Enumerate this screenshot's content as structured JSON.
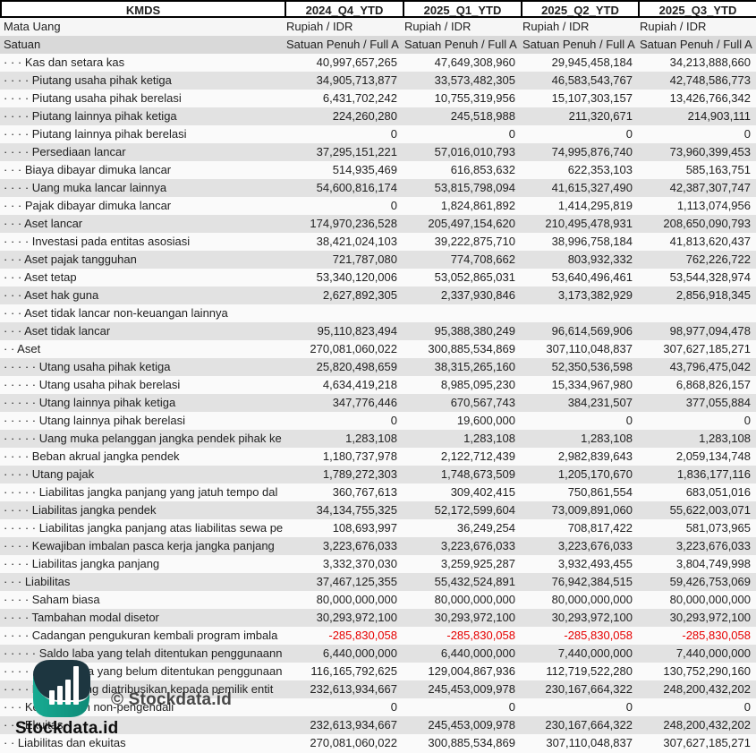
{
  "header": {
    "ticker": "KMDS",
    "periods": [
      "2024_Q4_YTD",
      "2025_Q1_YTD",
      "2025_Q2_YTD",
      "2025_Q3_YTD"
    ]
  },
  "meta": {
    "currency": {
      "label": "Mata Uang",
      "values": [
        "Rupiah / IDR",
        "Rupiah / IDR",
        "Rupiah / IDR",
        "Rupiah / IDR"
      ]
    },
    "unit": {
      "label": "Satuan",
      "values": [
        "Satuan Penuh / Full A",
        "Satuan Penuh / Full A",
        "Satuan Penuh / Full A",
        "Satuan Penuh / Full A"
      ]
    }
  },
  "table": {
    "rows": [
      {
        "label": "· · · Kas dan setara kas",
        "values": [
          "40,997,657,265",
          "47,649,308,960",
          "29,945,458,184",
          "34,213,888,660"
        ]
      },
      {
        "label": "· · · · Piutang usaha pihak ketiga",
        "values": [
          "34,905,713,877",
          "33,573,482,305",
          "46,583,543,767",
          "42,748,586,773"
        ]
      },
      {
        "label": "· · · · Piutang usaha pihak berelasi",
        "values": [
          "6,431,702,242",
          "10,755,319,956",
          "15,107,303,157",
          "13,426,766,342"
        ]
      },
      {
        "label": "· · · · Piutang lainnya pihak ketiga",
        "values": [
          "224,260,280",
          "245,518,988",
          "211,320,671",
          "214,903,111"
        ]
      },
      {
        "label": "· · · · Piutang lainnya pihak berelasi",
        "values": [
          "0",
          "0",
          "0",
          "0"
        ]
      },
      {
        "label": "· · · · Persediaan lancar",
        "values": [
          "37,295,151,221",
          "57,016,010,793",
          "74,995,876,740",
          "73,960,399,453"
        ]
      },
      {
        "label": "· · · Biaya dibayar dimuka lancar",
        "values": [
          "514,935,469",
          "616,853,632",
          "622,353,103",
          "585,163,751"
        ]
      },
      {
        "label": "· · · · Uang muka lancar lainnya",
        "values": [
          "54,600,816,174",
          "53,815,798,094",
          "41,615,327,490",
          "42,387,307,747"
        ]
      },
      {
        "label": "· · · Pajak dibayar dimuka lancar",
        "values": [
          "0",
          "1,824,861,892",
          "1,414,295,819",
          "1,113,074,956"
        ]
      },
      {
        "label": "· · · Aset lancar",
        "values": [
          "174,970,236,528",
          "205,497,154,620",
          "210,495,478,931",
          "208,650,090,793"
        ]
      },
      {
        "label": "· · · · Investasi pada entitas asosiasi",
        "values": [
          "38,421,024,103",
          "39,222,875,710",
          "38,996,758,184",
          "41,813,620,437"
        ]
      },
      {
        "label": "· · · Aset pajak tangguhan",
        "values": [
          "721,787,080",
          "774,708,662",
          "803,932,332",
          "762,226,722"
        ]
      },
      {
        "label": "· · · Aset tetap",
        "values": [
          "53,340,120,006",
          "53,052,865,031",
          "53,640,496,461",
          "53,544,328,974"
        ]
      },
      {
        "label": "· · · Aset hak guna",
        "values": [
          "2,627,892,305",
          "2,337,930,846",
          "3,173,382,929",
          "2,856,918,345"
        ]
      },
      {
        "label": "· · · Aset tidak lancar non-keuangan lainnya",
        "values": [
          "",
          "",
          "",
          ""
        ]
      },
      {
        "label": "· · · Aset tidak lancar",
        "values": [
          "95,110,823,494",
          "95,388,380,249",
          "96,614,569,906",
          "98,977,094,478"
        ]
      },
      {
        "label": "· · Aset",
        "values": [
          "270,081,060,022",
          "300,885,534,869",
          "307,110,048,837",
          "307,627,185,271"
        ]
      },
      {
        "label": "· · · · · Utang usaha pihak ketiga",
        "values": [
          "25,820,498,659",
          "38,315,265,160",
          "52,350,536,598",
          "43,796,475,042"
        ]
      },
      {
        "label": "· · · · · Utang usaha pihak berelasi",
        "values": [
          "4,634,419,218",
          "8,985,095,230",
          "15,334,967,980",
          "6,868,826,157"
        ]
      },
      {
        "label": "· · · · · Utang lainnya pihak ketiga",
        "values": [
          "347,776,446",
          "670,567,743",
          "384,231,507",
          "377,055,884"
        ]
      },
      {
        "label": "· · · · · Utang lainnya pihak berelasi",
        "values": [
          "0",
          "19,600,000",
          "0",
          "0"
        ]
      },
      {
        "label": "· · · · · Uang muka pelanggan jangka pendek pihak ke",
        "values": [
          "1,283,108",
          "1,283,108",
          "1,283,108",
          "1,283,108"
        ]
      },
      {
        "label": "· · · · Beban akrual jangka pendek",
        "values": [
          "1,180,737,978",
          "2,122,712,439",
          "2,982,839,643",
          "2,059,134,748"
        ]
      },
      {
        "label": "· · · · Utang pajak",
        "values": [
          "1,789,272,303",
          "1,748,673,509",
          "1,205,170,670",
          "1,836,177,116"
        ]
      },
      {
        "label": "· · · · · Liabilitas jangka panjang yang jatuh tempo dal",
        "values": [
          "360,767,613",
          "309,402,415",
          "750,861,554",
          "683,051,016"
        ]
      },
      {
        "label": "· · · · Liabilitas jangka pendek",
        "values": [
          "34,134,755,325",
          "52,172,599,604",
          "73,009,891,060",
          "55,622,003,071"
        ]
      },
      {
        "label": "· · · · · Liabilitas jangka panjang atas liabilitas sewa pe",
        "values": [
          "108,693,997",
          "36,249,254",
          "708,817,422",
          "581,073,965"
        ]
      },
      {
        "label": "· · · · Kewajiban imbalan pasca kerja jangka panjang",
        "values": [
          "3,223,676,033",
          "3,223,676,033",
          "3,223,676,033",
          "3,223,676,033"
        ]
      },
      {
        "label": "· · · · Liabilitas jangka panjang",
        "values": [
          "3,332,370,030",
          "3,259,925,287",
          "3,932,493,455",
          "3,804,749,998"
        ]
      },
      {
        "label": "· · · Liabilitas",
        "values": [
          "37,467,125,355",
          "55,432,524,891",
          "76,942,384,515",
          "59,426,753,069"
        ]
      },
      {
        "label": "· · · · Saham biasa",
        "values": [
          "80,000,000,000",
          "80,000,000,000",
          "80,000,000,000",
          "80,000,000,000"
        ]
      },
      {
        "label": "· · · · Tambahan modal disetor",
        "values": [
          "30,293,972,100",
          "30,293,972,100",
          "30,293,972,100",
          "30,293,972,100"
        ]
      },
      {
        "label": "· · · · Cadangan pengukuran kembali program imbala",
        "values": [
          "-285,830,058",
          "-285,830,058",
          "-285,830,058",
          "-285,830,058"
        ]
      },
      {
        "label": "· · · · · Saldo laba yang telah ditentukan penggunaann",
        "values": [
          "6,440,000,000",
          "6,440,000,000",
          "7,440,000,000",
          "7,440,000,000"
        ]
      },
      {
        "label": "· · · · · Saldo laba yang belum ditentukan penggunaan",
        "values": [
          "116,165,792,625",
          "129,004,867,936",
          "112,719,522,280",
          "130,752,290,160"
        ]
      },
      {
        "label": "· · · · Ekuitas yang diatribusikan kepada pemilik entit",
        "values": [
          "232,613,934,667",
          "245,453,009,978",
          "230,167,664,322",
          "248,200,432,202"
        ]
      },
      {
        "label": "· · · Kepentingan non-pengendali",
        "values": [
          "0",
          "0",
          "0",
          "0"
        ]
      },
      {
        "label": "· · · Ekuitas",
        "values": [
          "232,613,934,667",
          "245,453,009,978",
          "230,167,664,322",
          "248,200,432,202"
        ]
      },
      {
        "label": "· · Liabilitas dan ekuitas",
        "values": [
          "270,081,060,022",
          "300,885,534,869",
          "307,110,048,837",
          "307,627,185,271"
        ]
      }
    ]
  },
  "watermark": {
    "copyright": "© Stockdata.id",
    "brand": "Stockdata.id",
    "logo": "stockdata-bar-chart-logo",
    "colors": {
      "logo_dark": "#1d3640",
      "logo_teal": "#12a18c",
      "negative": "#e60000"
    }
  }
}
